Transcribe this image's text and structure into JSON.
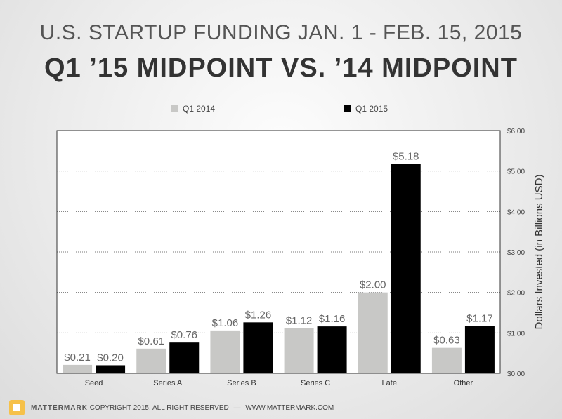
{
  "header": {
    "title_line1": "U.S. STARTUP FUNDING JAN. 1 - FEB. 15, 2015",
    "title_line2": "Q1 ’15 MIDPOINT VS. ’14 MIDPOINT"
  },
  "chart_data": {
    "type": "bar",
    "categories": [
      "Seed",
      "Series A",
      "Series B",
      "Series C",
      "Late",
      "Other"
    ],
    "series": [
      {
        "name": "Q1 2014",
        "color": "#c8c8c6",
        "values": [
          0.21,
          0.61,
          1.06,
          1.12,
          2.0,
          0.63
        ],
        "labels": [
          "$0.21",
          "$0.61",
          "$1.06",
          "$1.12",
          "$2.00",
          "$0.63"
        ]
      },
      {
        "name": "Q1 2015",
        "color": "#000000",
        "values": [
          0.2,
          0.76,
          1.26,
          1.16,
          5.18,
          1.17
        ],
        "labels": [
          "$0.20",
          "$0.76",
          "$1.26",
          "$1.16",
          "$5.18",
          "$1.17"
        ]
      }
    ],
    "ylim": [
      0,
      6
    ],
    "yticks": [
      0,
      1,
      2,
      3,
      4,
      5,
      6
    ],
    "ytick_labels": [
      "$0.00",
      "$1.00",
      "$2.00",
      "$3.00",
      "$4.00",
      "$5.00",
      "$6.00"
    ],
    "ylabel": "Dollars Invested (in Billions USD)",
    "xlabel": "",
    "grid": "dotted-horizontal",
    "legend_position": "top"
  },
  "footer": {
    "brand": "MATTERMARK",
    "copyright": "COPYRIGHT 2015, ALL RIGHT RESERVED",
    "separator": "—",
    "url": "WWW.MATTERMARK.COM"
  }
}
